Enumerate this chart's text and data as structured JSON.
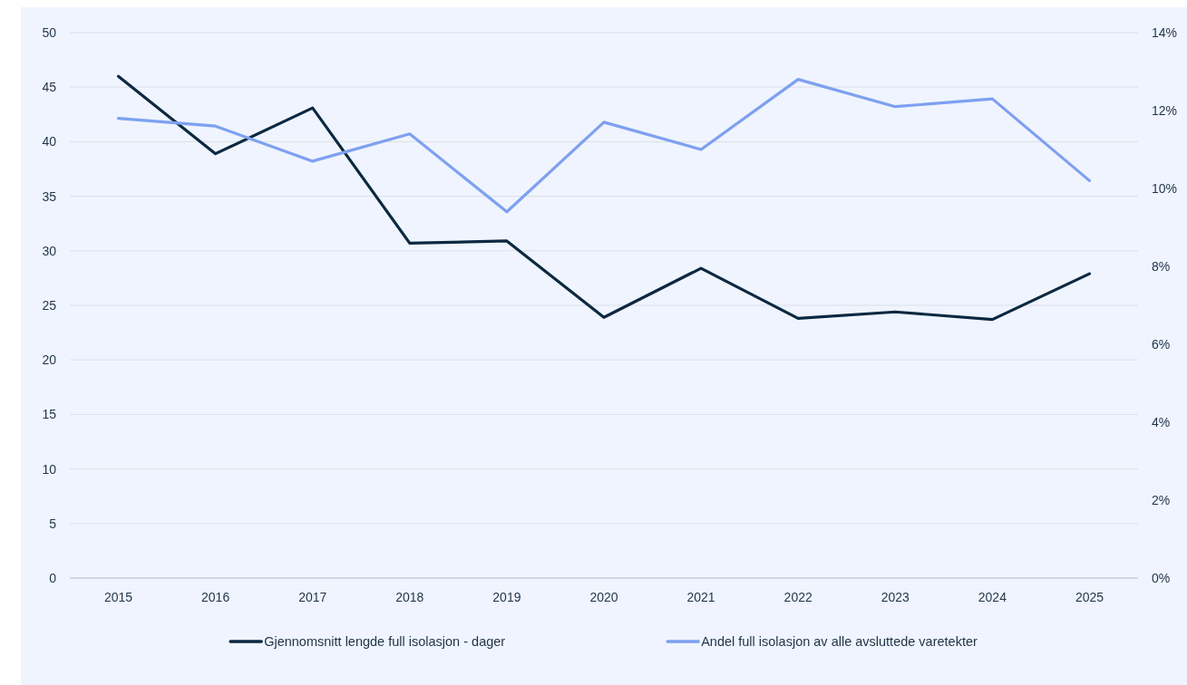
{
  "chart_data": {
    "type": "line",
    "categories": [
      "2015",
      "2016",
      "2017",
      "2018",
      "2019",
      "2020",
      "2021",
      "2022",
      "2023",
      "2024",
      "2025"
    ],
    "ylim": [
      0,
      50
    ],
    "yticks": [
      0,
      5,
      10,
      15,
      20,
      25,
      30,
      35,
      40,
      45,
      50
    ],
    "y2lim": [
      0,
      14
    ],
    "y2ticks": [
      {
        "value": 0,
        "label": "0%"
      },
      {
        "value": 2,
        "label": "2%"
      },
      {
        "value": 4,
        "label": "4%"
      },
      {
        "value": 6,
        "label": "6%"
      },
      {
        "value": 8,
        "label": "8%"
      },
      {
        "value": 10,
        "label": "10%"
      },
      {
        "value": 12,
        "label": "12%"
      },
      {
        "value": 14,
        "label": "14%"
      }
    ],
    "series": [
      {
        "name": "Gjennomsnitt lengde full isolasjon - dager",
        "color": "#0b2840",
        "values": [
          46.0,
          38.9,
          43.1,
          30.7,
          30.9,
          23.9,
          28.4,
          23.8,
          24.4,
          23.7,
          27.9
        ]
      },
      {
        "name": "Andel full isolasjon av alle avsluttede varetekter",
        "color": "#7ea0f0",
        "axis": "y2",
        "values": [
          11.8,
          11.6,
          10.7,
          11.4,
          9.4,
          11.7,
          11.0,
          12.8,
          12.1,
          12.3,
          10.2
        ]
      }
    ],
    "grid": "y",
    "legend": "bottom"
  }
}
